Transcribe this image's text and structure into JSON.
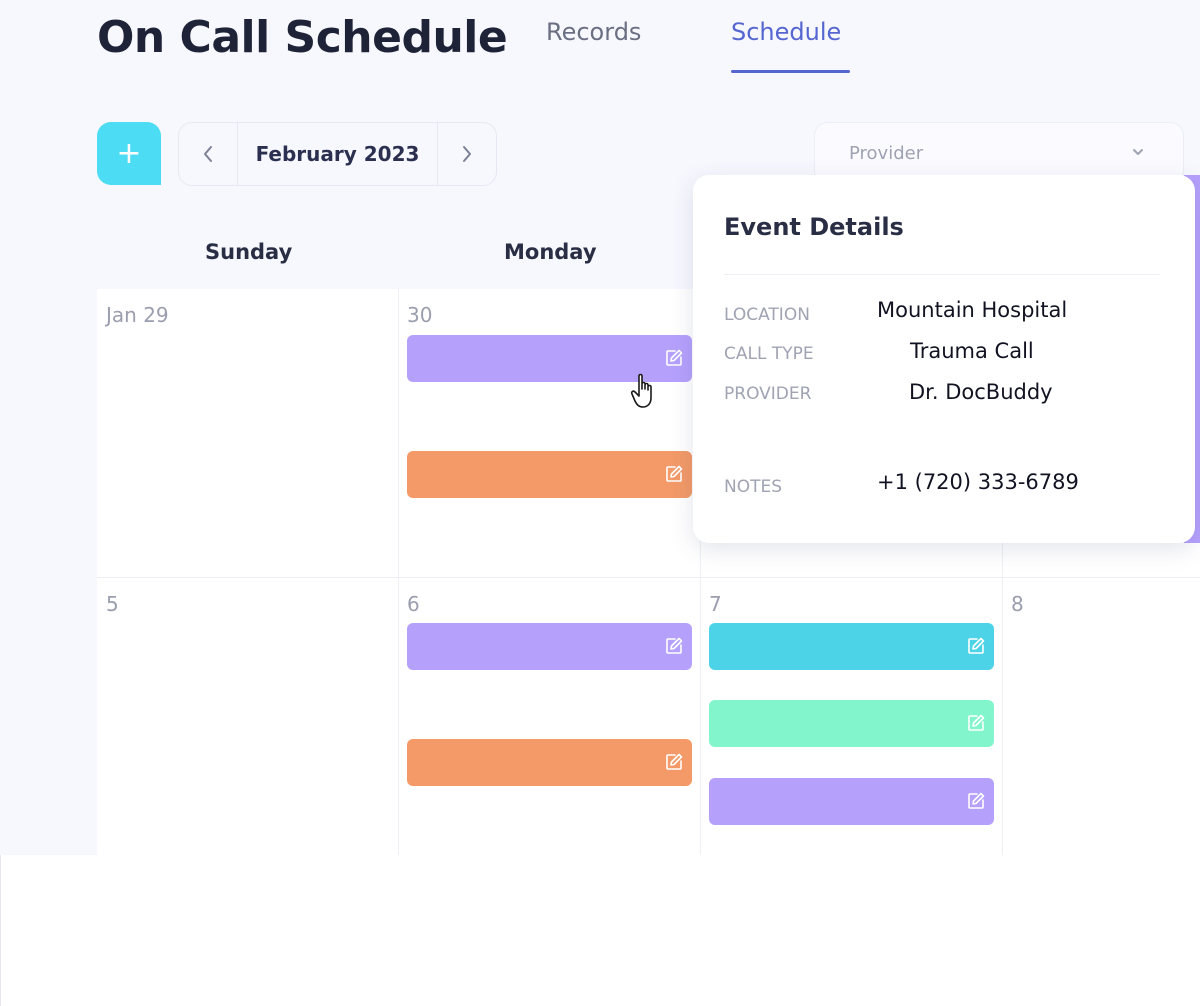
{
  "header": {
    "title": "On Call Schedule",
    "tabs": [
      {
        "label": "Records",
        "active": false
      },
      {
        "label": "Schedule",
        "active": true
      }
    ],
    "accent_color": "#5566d0"
  },
  "toolbar": {
    "add_label": "+",
    "month": "February 2023",
    "prev_icon": "chevron-left-icon",
    "next_icon": "chevron-right-icon",
    "provider_placeholder": "Provider"
  },
  "calendar": {
    "day_headers": [
      "Sunday",
      "Monday"
    ],
    "week1": {
      "dates": [
        "Jan 29",
        "30"
      ]
    },
    "week2": {
      "dates": [
        "5",
        "6",
        "7",
        "8"
      ]
    },
    "event_colors": {
      "purple": "#b5a1fc",
      "orange": "#f39a68",
      "cyan": "#4dd3e8",
      "mint": "#83f5cd"
    }
  },
  "event_details": {
    "title": "Event Details",
    "location_label": "LOCATION",
    "location_value": "Mountain Hospital",
    "call_type_label": "CALL TYPE",
    "call_type_value": "Trauma Call",
    "provider_label": "PROVIDER",
    "provider_value": "Dr. DocBuddy",
    "notes_label": "NOTES",
    "notes_value": "+1 (720) 333-6789"
  }
}
